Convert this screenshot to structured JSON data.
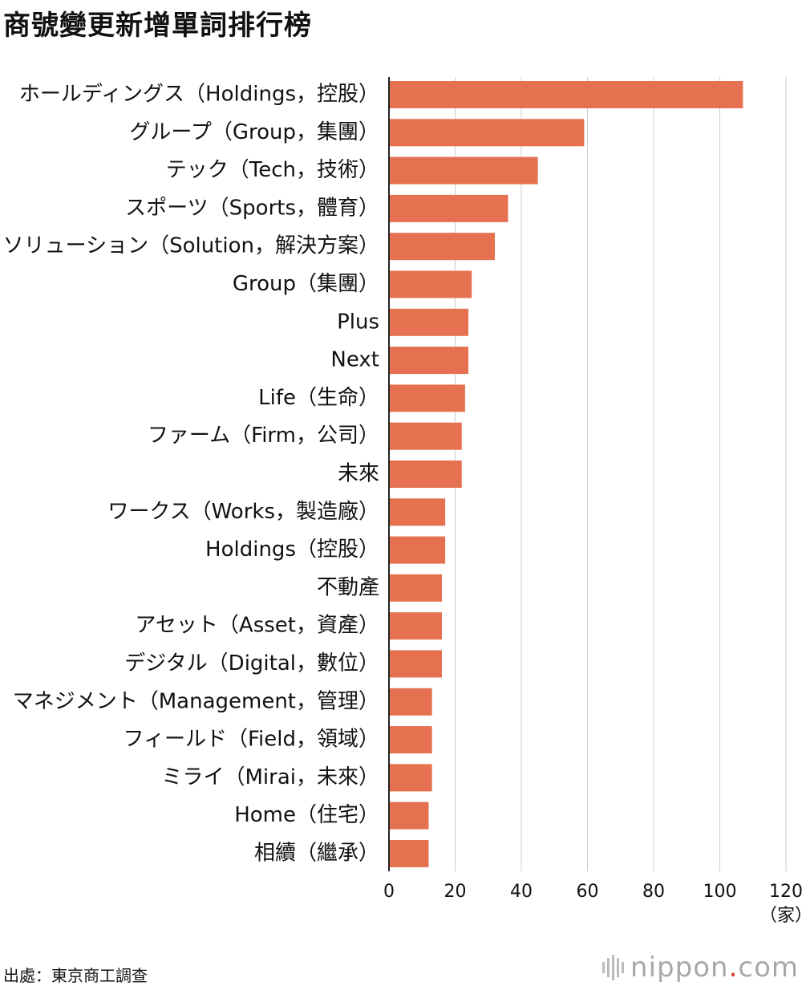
{
  "title": "商號變更新增單詞排行榜",
  "source": "出處：東京商工調查",
  "brand": {
    "name": "nippon",
    "dot": ".",
    "suffix": "com",
    "accent_color": "#d8352a"
  },
  "chart_data": {
    "type": "bar",
    "orientation": "horizontal",
    "bar_color": "#e57150",
    "categories": [
      "ホールディングス（Holdings，控股）",
      "グループ（Group，集團）",
      "テック（Tech，技術）",
      "スポーツ（Sports，體育）",
      "ソリューション（Solution，解決方案）",
      "Group（集團）",
      "Plus",
      "Next",
      "Life（生命）",
      "ファーム（Firm，公司）",
      "未來",
      "ワークス（Works，製造廠）",
      "Holdings（控股）",
      "不動產",
      "アセット（Asset，資產）",
      "デジタル（Digital，數位）",
      "マネジメント（Management，管理）",
      "フィールド（Field，領域）",
      "ミライ（Mirai，未來）",
      "Home（住宅）",
      "相續（繼承）"
    ],
    "values": [
      107,
      59,
      45,
      36,
      32,
      25,
      24,
      24,
      23,
      22,
      22,
      17,
      17,
      16,
      16,
      16,
      13,
      13,
      13,
      12,
      12
    ],
    "xlim": [
      0,
      120
    ],
    "xticks": [
      "0",
      "20",
      "40",
      "60",
      "80",
      "100",
      "120"
    ],
    "xunit": "（家）",
    "grid": true
  }
}
